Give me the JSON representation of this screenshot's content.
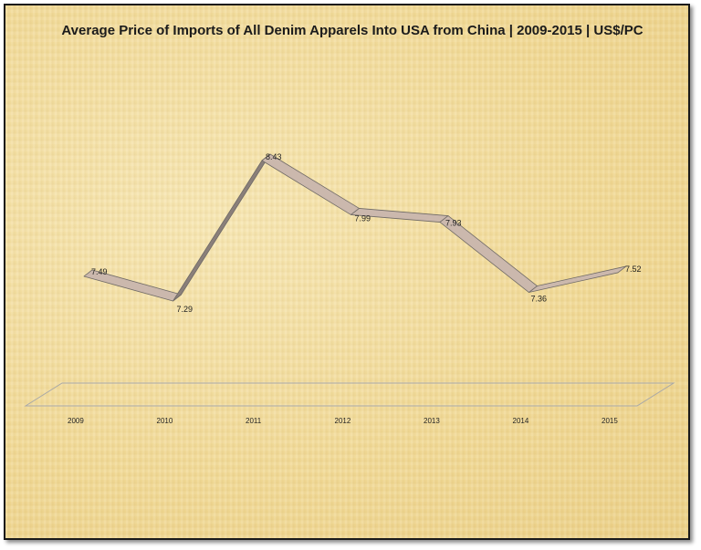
{
  "chart_data": {
    "type": "line",
    "title": "Average Price of Imports of All Denim Apparels Into USA from China  | 2009-2015 | US$/PC",
    "categories": [
      "2009",
      "2010",
      "2011",
      "2012",
      "2013",
      "2014",
      "2015"
    ],
    "series": [
      {
        "values": [
          7.49,
          7.29,
          8.43,
          7.99,
          7.93,
          7.36,
          7.52
        ]
      }
    ],
    "data_labels": [
      "7.49",
      "7.29",
      "8.43",
      "7.99",
      "7.93",
      "7.36",
      "7.52"
    ],
    "style": "3d-ribbon",
    "grid": false,
    "legend": "none"
  }
}
